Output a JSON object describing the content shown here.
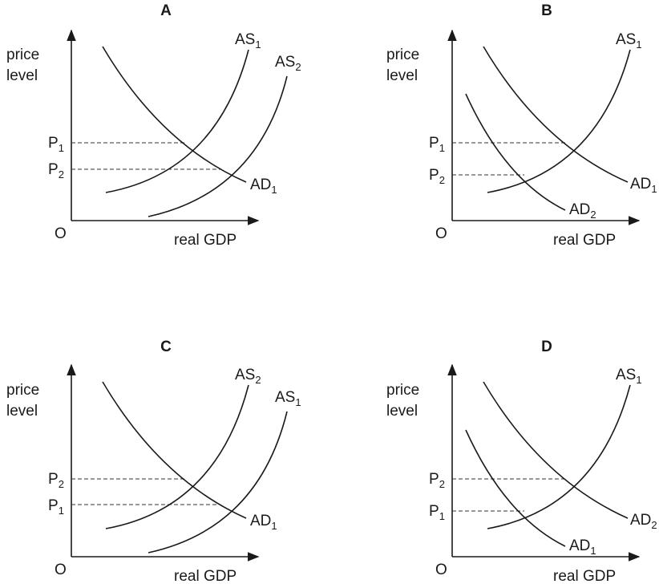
{
  "panels": [
    {
      "title": "A",
      "y_axis_label": [
        "price",
        "level"
      ],
      "x_axis_label": "real GDP",
      "origin_label": "O",
      "price_labels": [
        {
          "base": "P",
          "sub": "1"
        },
        {
          "base": "P",
          "sub": "2"
        }
      ],
      "curves": [
        {
          "base": "AS",
          "sub": "1"
        },
        {
          "base": "AS",
          "sub": "2"
        },
        {
          "base": "AD",
          "sub": "1"
        }
      ]
    },
    {
      "title": "B",
      "y_axis_label": [
        "price",
        "level"
      ],
      "x_axis_label": "real GDP",
      "origin_label": "O",
      "price_labels": [
        {
          "base": "P",
          "sub": "1"
        },
        {
          "base": "P",
          "sub": "2"
        }
      ],
      "curves": [
        {
          "base": "AS",
          "sub": "1"
        },
        {
          "base": "AD",
          "sub": "1"
        },
        {
          "base": "AD",
          "sub": "2"
        }
      ]
    },
    {
      "title": "C",
      "y_axis_label": [
        "price",
        "level"
      ],
      "x_axis_label": "real GDP",
      "origin_label": "O",
      "price_labels": [
        {
          "base": "P",
          "sub": "2"
        },
        {
          "base": "P",
          "sub": "1"
        }
      ],
      "curves": [
        {
          "base": "AS",
          "sub": "2"
        },
        {
          "base": "AS",
          "sub": "1"
        },
        {
          "base": "AD",
          "sub": "1"
        }
      ]
    },
    {
      "title": "D",
      "y_axis_label": [
        "price",
        "level"
      ],
      "x_axis_label": "real GDP",
      "origin_label": "O",
      "price_labels": [
        {
          "base": "P",
          "sub": "2"
        },
        {
          "base": "P",
          "sub": "1"
        }
      ],
      "curves": [
        {
          "base": "AS",
          "sub": "1"
        },
        {
          "base": "AD",
          "sub": "2"
        },
        {
          "base": "AD",
          "sub": "1"
        }
      ]
    }
  ]
}
